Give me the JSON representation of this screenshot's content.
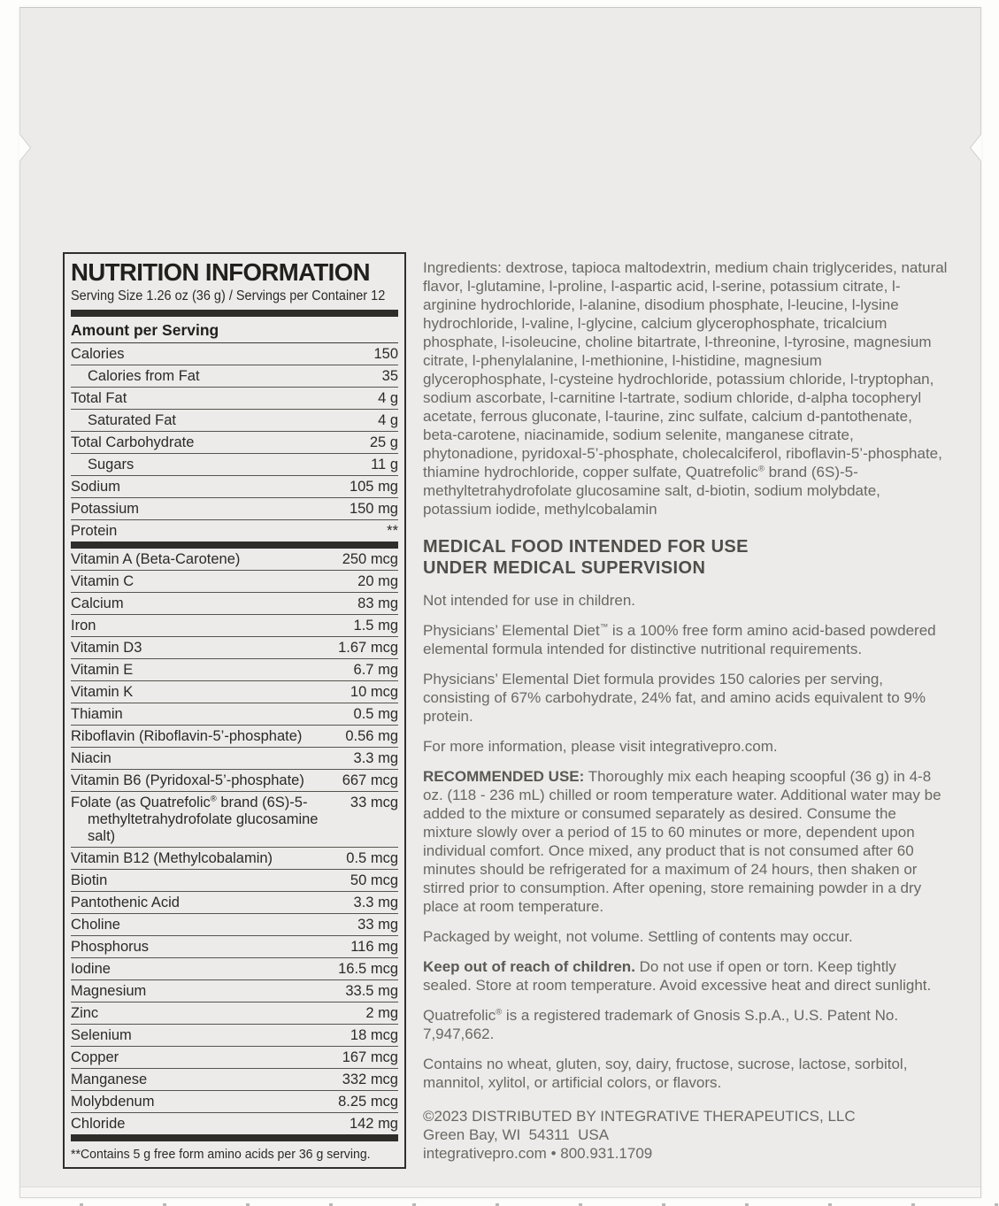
{
  "colors": {
    "page_background": "#fdfdfc",
    "package_background": "#ECEBE9",
    "label_ink": "#2b2a27",
    "body_text": "#6b6763",
    "heading_text": "#504e4a",
    "divider_bar": "#2e2d2a"
  },
  "nutrition": {
    "title": "NUTRITION INFORMATION",
    "serving_line": "Serving Size 1.26 oz (36 g) / Servings per Container 12",
    "amount_header": "Amount per Serving",
    "rows": [
      {
        "label": "Calories",
        "value": "150"
      },
      {
        "label": "Calories from Fat",
        "value": "35",
        "indent": true
      },
      {
        "label": "Total Fat",
        "value": "4 g"
      },
      {
        "label": "Saturated Fat",
        "value": "4 g",
        "indent": true
      },
      {
        "label": "Total Carbohydrate",
        "value": "25 g"
      },
      {
        "label": "Sugars",
        "value": "11 g",
        "indent": true
      },
      {
        "label": "Sodium",
        "value": "105 mg"
      },
      {
        "label": "Potassium",
        "value": "150 mg"
      },
      {
        "label": "Protein",
        "value": "**",
        "bar_after": true
      },
      {
        "label": "Vitamin A (Beta-Carotene)",
        "value": "250 mcg"
      },
      {
        "label": "Vitamin C",
        "value": "20 mg"
      },
      {
        "label": "Calcium",
        "value": "83 mg"
      },
      {
        "label": "Iron",
        "value": "1.5 mg"
      },
      {
        "label": "Vitamin D3",
        "value": "1.67 mcg"
      },
      {
        "label": "Vitamin E",
        "value": "6.7 mg"
      },
      {
        "label": "Vitamin K",
        "value": "10 mcg"
      },
      {
        "label": "Thiamin",
        "value": "0.5 mg"
      },
      {
        "label": "Riboflavin (Riboflavin-5’-phosphate)",
        "value": "0.56 mg"
      },
      {
        "label": "Niacin",
        "value": "3.3 mg"
      },
      {
        "label": "Vitamin B6 (Pyridoxal-5’-phosphate)",
        "value": "667 mcg"
      },
      {
        "label": "Folate (as Quatrefolic® brand (6S)-5-",
        "label2": "methyltetrahydrofolate glucosamine salt)",
        "value": "33 mcg"
      },
      {
        "label": "Vitamin B12 (Methylcobalamin)",
        "value": "0.5 mcg"
      },
      {
        "label": "Biotin",
        "value": "50 mcg"
      },
      {
        "label": "Pantothenic Acid",
        "value": "3.3 mg"
      },
      {
        "label": "Choline",
        "value": "33 mg"
      },
      {
        "label": "Phosphorus",
        "value": "116 mg"
      },
      {
        "label": "Iodine",
        "value": "16.5 mcg"
      },
      {
        "label": "Magnesium",
        "value": "33.5 mg"
      },
      {
        "label": "Zinc",
        "value": "2 mg"
      },
      {
        "label": "Selenium",
        "value": "18 mcg"
      },
      {
        "label": "Copper",
        "value": "167 mcg"
      },
      {
        "label": "Manganese",
        "value": "332 mcg"
      },
      {
        "label": "Molybdenum",
        "value": "8.25 mcg"
      },
      {
        "label": "Chloride",
        "value": "142 mg",
        "bar_after": true
      }
    ],
    "footnote": "**Contains 5 g free form amino acids per 36 g serving."
  },
  "right_column": {
    "blocks": [
      {
        "type": "p",
        "name": "ingredients-paragraph",
        "text": "Ingredients: dextrose, tapioca maltodextrin, medium chain triglycerides, natural flavor, l-glutamine, l-proline, l-aspartic acid, l-serine, potassium citrate, l-arginine hydrochloride, l-alanine, disodium phosphate, l-leucine, l-lysine hydrochloride, l-valine, l-glycine, calcium glycerophosphate, tricalcium phosphate, l-isoleucine, choline bitartrate, l-threonine, l-tyrosine, magnesium citrate, l-phenylalanine, l-methionine, l-histidine, magnesium glycerophosphate, l-cysteine hydrochloride, potassium chloride, l-tryptophan, sodium ascorbate, l-carnitine l-tartrate, sodium chloride, d-alpha tocopheryl acetate, ferrous gluconate, l-taurine, zinc sulfate, calcium d-pantothenate, beta-carotene, niacinamide, sodium selenite, manganese citrate, phytonadione, pyridoxal-5’-phosphate, cholecalciferol, riboflavin-5’-phosphate, thiamine hydrochloride, copper sulfate, Quatrefolic® brand (6S)-5-methyltetrahydrofolate glucosamine salt, d-biotin, sodium molybdate, potassium iodide, methylcobalamin"
      },
      {
        "type": "h",
        "name": "medical-food-heading",
        "text": "MEDICAL FOOD INTENDED FOR USE\nUNDER MEDICAL SUPERVISION"
      },
      {
        "type": "p",
        "name": "children-note",
        "text": "Not intended for use in children."
      },
      {
        "type": "p",
        "name": "product-description",
        "text": "Physicians’ Elemental Diet™ is a 100% free form amino acid-based powdered elemental formula intended for distinctive nutritional requirements."
      },
      {
        "type": "p",
        "name": "formula-composition",
        "text": "Physicians’ Elemental Diet formula provides 150 calories per serving, consisting of 67% carbohydrate, 24% fat, and amino acids equivalent to 9% protein."
      },
      {
        "type": "p",
        "name": "more-information",
        "text": "For more information, please visit integrativepro.com."
      },
      {
        "type": "p",
        "name": "recommended-use",
        "bold": "RECOMMENDED USE:",
        "text": " Thoroughly mix each heaping scoopful (36 g) in 4-8 oz. (118 - 236 mL) chilled or room temperature water. Additional water may be added to the mixture or consumed separately as desired. Consume the mixture slowly over a period of 15 to 60 minutes or more, dependent upon individual comfort. Once mixed, any product that is not consumed after 60 minutes should be refrigerated for a maximum of 24 hours, then shaken or stirred prior to consumption. After opening, store remaining powder in a dry place at room temperature."
      },
      {
        "type": "p",
        "name": "packaged-by-weight-note",
        "text": "Packaged by weight, not volume. Settling of contents may occur."
      },
      {
        "type": "p",
        "name": "keep-out-of-reach-warning",
        "bold": "Keep out of reach of children.",
        "text": " Do not use if open or torn. Keep tightly sealed. Store at room temperature. Avoid excessive heat and direct sunlight."
      },
      {
        "type": "p",
        "name": "trademark-note",
        "text": "Quatrefolic® is a registered trademark of Gnosis S.p.A., U.S. Patent No. 7,947,662."
      },
      {
        "type": "p",
        "name": "allergen-statement",
        "text": "Contains no wheat, gluten, soy, dairy, fructose, sucrose, lactose, sorbitol, mannitol, xylitol, or artificial colors, or flavors."
      },
      {
        "type": "footer",
        "name": "distributor-footer",
        "lines": [
          "©2023 DISTRIBUTED BY INTEGRATIVE THERAPEUTICS, LLC",
          "Green Bay, WI  54311  USA",
          "integrativepro.com • 800.931.1709"
        ]
      }
    ]
  }
}
